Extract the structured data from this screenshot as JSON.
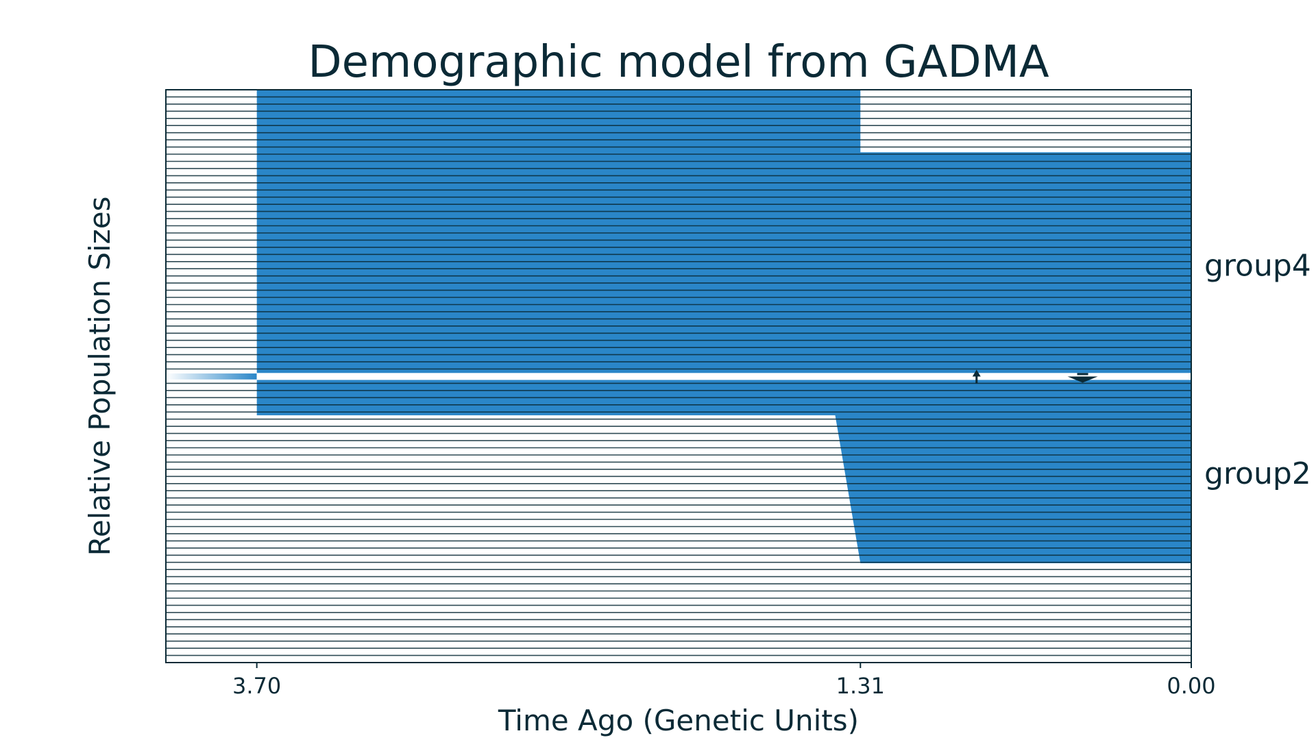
{
  "chart_data": {
    "type": "area",
    "title": "Demographic model from GADMA",
    "xlabel": "Time Ago (Genetic Units)",
    "ylabel": "Relative Population Sizes",
    "x_ticks": [
      {
        "value": 3.7,
        "label": "3.70"
      },
      {
        "value": 1.31,
        "label": "1.31"
      },
      {
        "value": 0.0,
        "label": "0.00"
      }
    ],
    "xlim": [
      4.06,
      0.0
    ],
    "ancestral": {
      "start": 4.06,
      "end": 3.7,
      "relative_size": 0.06
    },
    "populations": [
      {
        "name": "group4",
        "color": "#2a86c8",
        "epochs": [
          {
            "start": 3.7,
            "end": 1.31,
            "size_start": 6.8,
            "size_end": 6.8,
            "shape": "constant"
          },
          {
            "start": 1.31,
            "end": 0.0,
            "size_start": 5.3,
            "size_end": 5.3,
            "shape": "constant"
          }
        ]
      },
      {
        "name": "group2",
        "color": "#2a86c8",
        "epochs": [
          {
            "start": 3.7,
            "end": 1.41,
            "size_start": 0.85,
            "size_end": 0.85,
            "shape": "constant"
          },
          {
            "start": 1.41,
            "end": 1.31,
            "size_start": 0.85,
            "size_end": 4.4,
            "shape": "linear"
          },
          {
            "start": 1.31,
            "end": 0.0,
            "size_start": 4.4,
            "size_end": 4.4,
            "shape": "constant"
          }
        ]
      }
    ],
    "migrations": [
      {
        "time": 0.85,
        "from": "group2",
        "to": "group4",
        "strength": "weak"
      },
      {
        "time": 0.43,
        "from": "group4",
        "to": "group2",
        "strength": "strong"
      }
    ],
    "colors": {
      "population_fill": "#2a86c8",
      "line": "#0b2a36",
      "background": "#ffffff"
    }
  }
}
